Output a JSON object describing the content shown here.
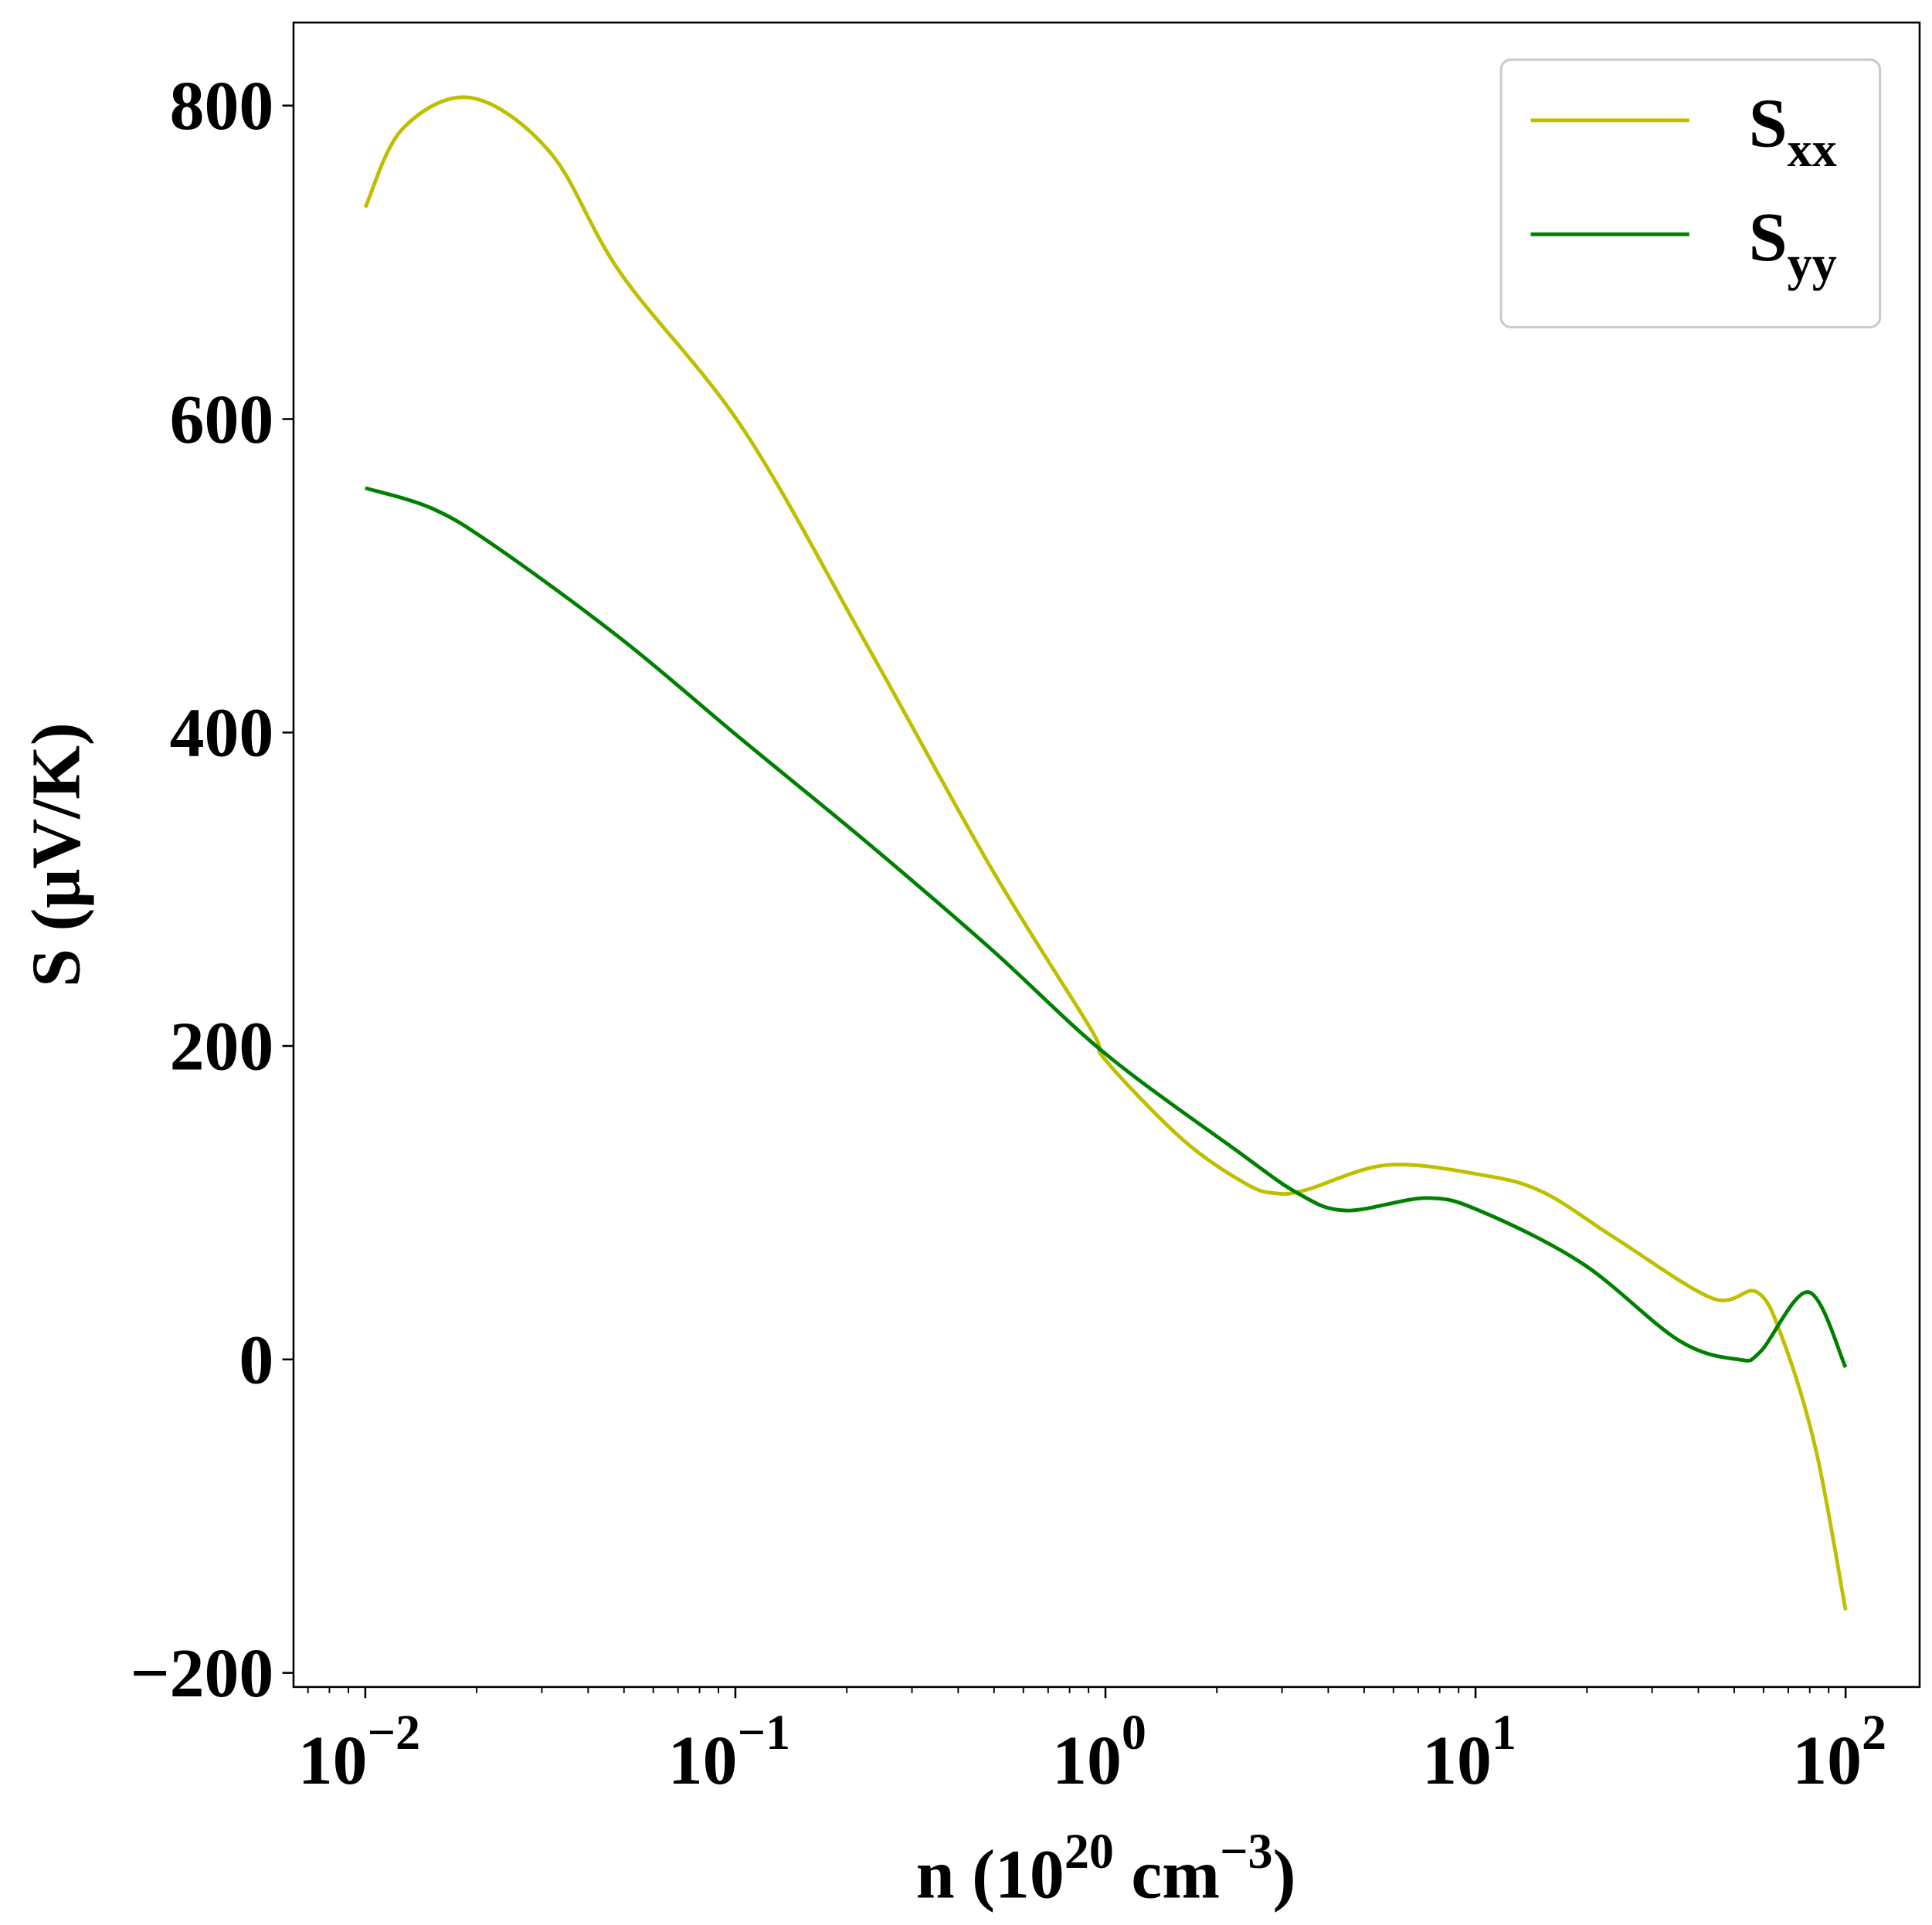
{
  "chart_data": {
    "type": "line",
    "title": "",
    "xlabel": "n (10^20 cm^-3)",
    "xlabel_parts": {
      "main": "n (10",
      "exp1": "20",
      "unit": " cm",
      "exp2": "−3",
      "close": ")"
    },
    "ylabel": "S (μV/K)",
    "xscale": "log",
    "xlim_log10": [
      -2.194,
      2.2
    ],
    "ylim": [
      -209,
      853
    ],
    "x_ticks": [
      {
        "base": "10",
        "exp": "−2",
        "log10": -2
      },
      {
        "base": "10",
        "exp": "−1",
        "log10": -1
      },
      {
        "base": "10",
        "exp": "0",
        "log10": 0
      },
      {
        "base": "10",
        "exp": "1",
        "log10": 1
      },
      {
        "base": "10",
        "exp": "2",
        "log10": 2
      }
    ],
    "y_ticks": [
      {
        "label": "−200",
        "value": -200
      },
      {
        "label": "0",
        "value": 0
      },
      {
        "label": "200",
        "value": 200
      },
      {
        "label": "400",
        "value": 400
      },
      {
        "label": "600",
        "value": 600
      },
      {
        "label": "800",
        "value": 800
      }
    ],
    "grid": false,
    "legend_position": "top-right",
    "series": [
      {
        "name": "S_xx",
        "label_main": "S",
        "label_sub": "xx",
        "color": "#bfbf00",
        "log10_n": [
          -2,
          -1.9,
          -1.715,
          -1.5,
          -1.31,
          -0.98,
          -0.645,
          -0.31,
          -0.04,
          0.0,
          0.21,
          0.38,
          0.46,
          0.54,
          0.76,
          1.01,
          1.18,
          1.38,
          1.64,
          1.76,
          1.83,
          1.92,
          2.0
        ],
        "values": [
          735,
          785,
          805,
          770,
          693,
          594,
          456,
          314,
          211,
          191,
          140,
          112,
          106,
          108,
          124,
          118,
          107,
          77,
          39,
          43,
          13,
          -58,
          -160
        ]
      },
      {
        "name": "S_yy",
        "label_main": "S",
        "label_sub": "yy",
        "color": "#008000",
        "log10_n": [
          -2,
          -1.82,
          -1.65,
          -1.31,
          -0.98,
          -0.645,
          -0.31,
          0.0,
          0.35,
          0.52,
          0.65,
          0.87,
          1.02,
          1.29,
          1.55,
          1.71,
          1.77,
          1.9,
          2.0
        ],
        "values": [
          556,
          543,
          519,
          460,
          395,
          330,
          262,
          195,
          134,
          106,
          95,
          103,
          94,
          61,
          12,
          0,
          5,
          43,
          -5
        ]
      }
    ]
  }
}
